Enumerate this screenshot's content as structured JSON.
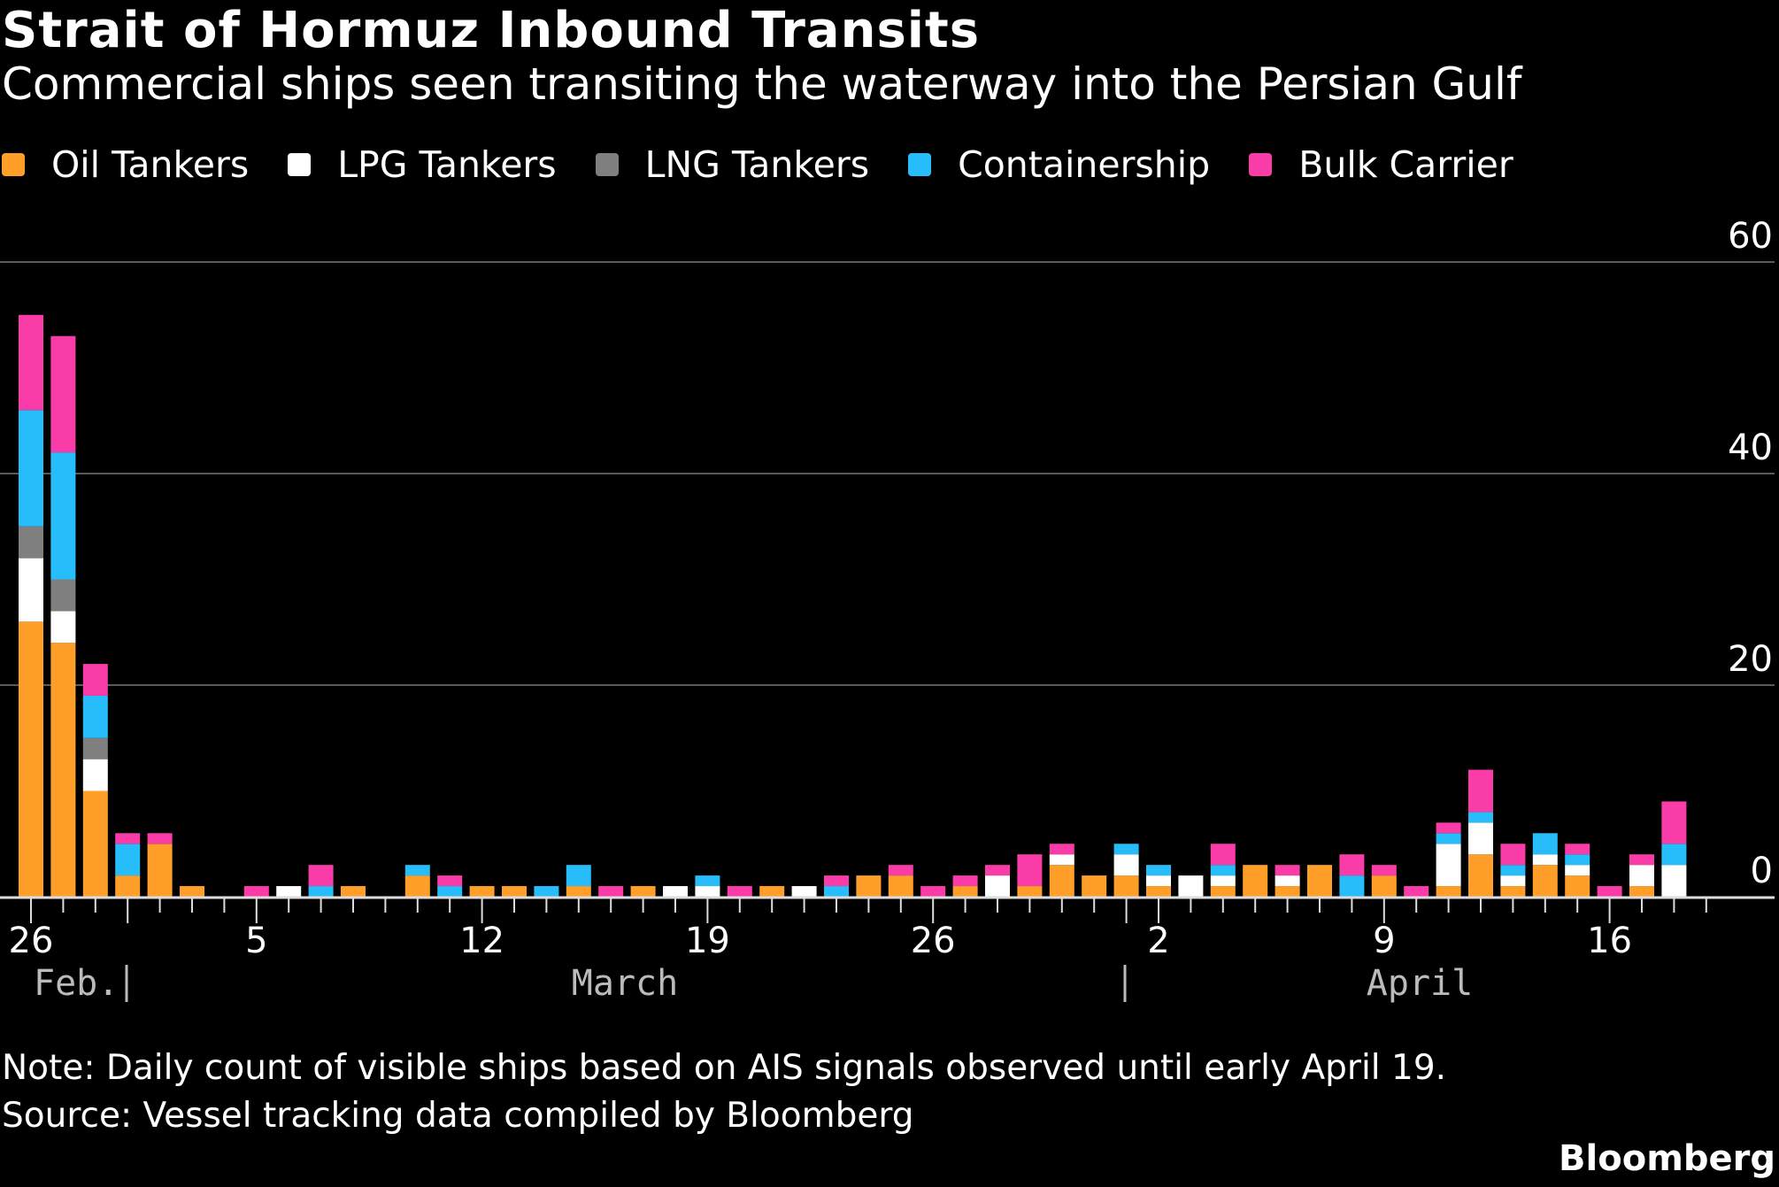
{
  "title": "Strait of Hormuz Inbound Transits",
  "subtitle": "Commercial ships seen transiting the waterway into the Persian Gulf",
  "note": "Note: Daily count of visible ships based on AIS signals observed until early April 19.",
  "source": "Source: Vessel tracking data compiled by Bloomberg",
  "brand": "Bloomberg",
  "chart_data": {
    "type": "bar",
    "stacked": true,
    "title": "Strait of Hormuz Inbound Transits",
    "ylim": [
      0,
      60
    ],
    "yticks": [
      "0",
      "20",
      "40",
      "60"
    ],
    "grid": true,
    "legend_placement": "top-left",
    "x_tick_labels": [
      {
        "date": "Feb 26",
        "label": "26"
      },
      {
        "date": "Mar 5",
        "label": "5"
      },
      {
        "date": "Mar 12",
        "label": "12"
      },
      {
        "date": "Mar 19",
        "label": "19"
      },
      {
        "date": "Mar 26",
        "label": "26"
      },
      {
        "date": "Apr 2",
        "label": "2"
      },
      {
        "date": "Apr 9",
        "label": "9"
      },
      {
        "date": "Apr 16",
        "label": "16"
      }
    ],
    "month_labels": [
      "Feb.",
      "March",
      "April"
    ],
    "categories": [
      "Feb 26",
      "Feb 27",
      "Feb 28",
      "Mar 1",
      "Mar 2",
      "Mar 3",
      "Mar 4",
      "Mar 5",
      "Mar 6",
      "Mar 7",
      "Mar 8",
      "Mar 9",
      "Mar 10",
      "Mar 11",
      "Mar 12",
      "Mar 13",
      "Mar 14",
      "Mar 15",
      "Mar 16",
      "Mar 17",
      "Mar 18",
      "Mar 19",
      "Mar 20",
      "Mar 21",
      "Mar 22",
      "Mar 23",
      "Mar 24",
      "Mar 25",
      "Mar 26",
      "Mar 27",
      "Mar 28",
      "Mar 29",
      "Mar 30",
      "Mar 31",
      "Apr 1",
      "Apr 2",
      "Apr 3",
      "Apr 4",
      "Apr 5",
      "Apr 6",
      "Apr 7",
      "Apr 8",
      "Apr 9",
      "Apr 10",
      "Apr 11",
      "Apr 12",
      "Apr 13",
      "Apr 14",
      "Apr 15",
      "Apr 16",
      "Apr 17",
      "Apr 18"
    ],
    "series": [
      {
        "name": "Oil Tankers",
        "color": "#ff9f29",
        "values": [
          26,
          24,
          10,
          2,
          5,
          1,
          0,
          0,
          0,
          0,
          1,
          0,
          2,
          0,
          1,
          1,
          0,
          1,
          0,
          1,
          0,
          0,
          0,
          1,
          0,
          0,
          2,
          2,
          0,
          1,
          0,
          1,
          3,
          2,
          2,
          1,
          0,
          1,
          3,
          1,
          3,
          0,
          2,
          0,
          1,
          4,
          1,
          3,
          2,
          0,
          1,
          0
        ]
      },
      {
        "name": "LPG Tankers",
        "color": "#ffffff",
        "values": [
          6,
          3,
          3,
          0,
          0,
          0,
          0,
          0,
          1,
          0,
          0,
          0,
          0,
          0,
          0,
          0,
          0,
          0,
          0,
          0,
          1,
          1,
          0,
          0,
          1,
          0,
          0,
          0,
          0,
          0,
          2,
          0,
          1,
          0,
          2,
          1,
          2,
          1,
          0,
          1,
          0,
          0,
          0,
          0,
          4,
          3,
          1,
          1,
          1,
          0,
          2,
          3
        ]
      },
      {
        "name": "LNG Tankers",
        "color": "#7f7f7f",
        "values": [
          3,
          3,
          2,
          0,
          0,
          0,
          0,
          0,
          0,
          0,
          0,
          0,
          0,
          0,
          0,
          0,
          0,
          0,
          0,
          0,
          0,
          0,
          0,
          0,
          0,
          0,
          0,
          0,
          0,
          0,
          0,
          0,
          0,
          0,
          0,
          0,
          0,
          0,
          0,
          0,
          0,
          0,
          0,
          0,
          0,
          0,
          0,
          0,
          0,
          0,
          0,
          0
        ]
      },
      {
        "name": "Containership",
        "color": "#26bdfa",
        "values": [
          11,
          12,
          4,
          3,
          0,
          0,
          0,
          0,
          0,
          1,
          0,
          0,
          1,
          1,
          0,
          0,
          1,
          2,
          0,
          0,
          0,
          1,
          0,
          0,
          0,
          1,
          0,
          0,
          0,
          0,
          0,
          0,
          0,
          0,
          1,
          1,
          0,
          1,
          0,
          0,
          0,
          2,
          0,
          0,
          1,
          1,
          1,
          2,
          1,
          0,
          0,
          2
        ]
      },
      {
        "name": "Bulk Carrier",
        "color": "#fa3ca9",
        "values": [
          9,
          11,
          3,
          1,
          1,
          0,
          0,
          1,
          0,
          2,
          0,
          0,
          0,
          1,
          0,
          0,
          0,
          0,
          1,
          0,
          0,
          0,
          1,
          0,
          0,
          1,
          0,
          1,
          1,
          1,
          1,
          3,
          1,
          0,
          0,
          0,
          0,
          2,
          0,
          1,
          0,
          2,
          1,
          1,
          1,
          4,
          2,
          0,
          1,
          1,
          1,
          4
        ]
      }
    ]
  }
}
